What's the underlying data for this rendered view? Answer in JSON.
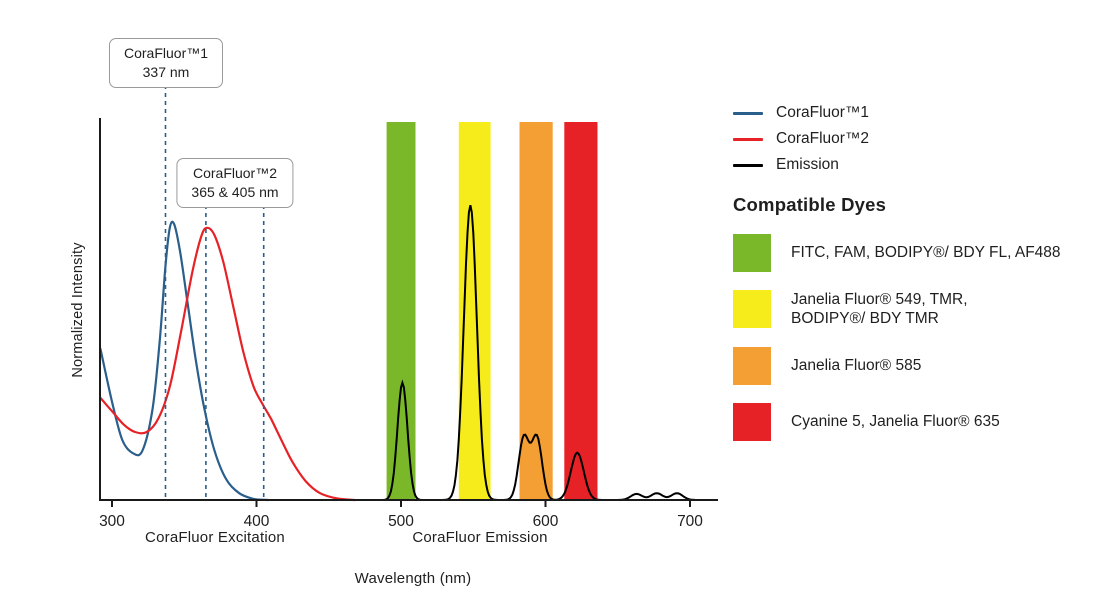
{
  "chart_data": {
    "type": "line",
    "title": "",
    "xlabel": "Wavelength (nm)",
    "ylabel": "Normalized Intensity",
    "x_ticks": [
      300,
      400,
      500,
      600,
      700
    ],
    "xlim": [
      292,
      720
    ],
    "ylim": [
      0,
      1
    ],
    "grid": false,
    "marker_color": "#2a5f8c",
    "axis_color": "#1a1a1a",
    "section_labels": [
      {
        "text": "CoraFluor Excitation"
      },
      {
        "text": "CoraFluor Emission"
      }
    ],
    "annotations": [
      {
        "title": "CoraFluor™1",
        "subtitle": "337 nm",
        "lines_nm": [
          337
        ]
      },
      {
        "title": "CoraFluor™2",
        "subtitle": "365 & 405 nm",
        "lines_nm": [
          365,
          405
        ]
      }
    ],
    "emission_bands": [
      {
        "name": "green",
        "from_nm": 490,
        "to_nm": 510,
        "color": "#7ab829"
      },
      {
        "name": "yellow",
        "from_nm": 540,
        "to_nm": 562,
        "color": "#f7ec1b"
      },
      {
        "name": "orange",
        "from_nm": 582,
        "to_nm": 605,
        "color": "#f49f33"
      },
      {
        "name": "red",
        "from_nm": 613,
        "to_nm": 636,
        "color": "#e62227"
      }
    ],
    "series": [
      {
        "name": "CoraFluor™1",
        "role": "excitation",
        "color": "#2a5f8c",
        "points": [
          [
            292,
            0.4
          ],
          [
            300,
            0.26
          ],
          [
            307,
            0.16
          ],
          [
            314,
            0.125
          ],
          [
            321,
            0.13
          ],
          [
            328,
            0.24
          ],
          [
            333,
            0.42
          ],
          [
            337,
            0.62
          ],
          [
            340,
            0.72
          ],
          [
            343,
            0.73
          ],
          [
            347,
            0.66
          ],
          [
            352,
            0.53
          ],
          [
            358,
            0.37
          ],
          [
            364,
            0.24
          ],
          [
            371,
            0.13
          ],
          [
            379,
            0.055
          ],
          [
            388,
            0.018
          ],
          [
            398,
            0.003
          ],
          [
            408,
            0
          ]
        ]
      },
      {
        "name": "CoraFluor™2",
        "role": "excitation",
        "color": "#e62227",
        "points": [
          [
            292,
            0.27
          ],
          [
            300,
            0.235
          ],
          [
            308,
            0.2
          ],
          [
            316,
            0.18
          ],
          [
            324,
            0.18
          ],
          [
            332,
            0.215
          ],
          [
            340,
            0.3
          ],
          [
            348,
            0.45
          ],
          [
            356,
            0.61
          ],
          [
            362,
            0.7
          ],
          [
            366,
            0.72
          ],
          [
            371,
            0.7
          ],
          [
            377,
            0.63
          ],
          [
            384,
            0.51
          ],
          [
            391,
            0.39
          ],
          [
            398,
            0.3
          ],
          [
            404,
            0.255
          ],
          [
            410,
            0.215
          ],
          [
            417,
            0.16
          ],
          [
            425,
            0.1
          ],
          [
            434,
            0.05
          ],
          [
            444,
            0.018
          ],
          [
            456,
            0.004
          ],
          [
            468,
            0
          ]
        ]
      }
    ],
    "emission": {
      "name": "Emission",
      "color": "#000000",
      "range_nm": [
        435,
        716
      ],
      "peaks": [
        {
          "nm": 501,
          "height": 0.31,
          "sigma": 3.5
        },
        {
          "nm": 548,
          "height": 0.78,
          "sigma": 4.5
        },
        {
          "nm": 585,
          "height": 0.165,
          "sigma": 3.6
        },
        {
          "nm": 594,
          "height": 0.165,
          "sigma": 3.6
        },
        {
          "nm": 622,
          "height": 0.125,
          "sigma": 4.5
        },
        {
          "nm": 663,
          "height": 0.016,
          "sigma": 4
        },
        {
          "nm": 677,
          "height": 0.018,
          "sigma": 4
        },
        {
          "nm": 691,
          "height": 0.018,
          "sigma": 4
        }
      ]
    },
    "legend": {
      "items": [
        {
          "label": "CoraFluor™1",
          "color": "#2a5f8c"
        },
        {
          "label": "CoraFluor™2",
          "color": "#e62227"
        },
        {
          "label": "Emission",
          "color": "#000000"
        }
      ]
    }
  },
  "dye_panel": {
    "title": "Compatible Dyes",
    "items": [
      {
        "color": "#7ab829",
        "label": "FITC, FAM, BODIPY®/ BDY FL, AF488"
      },
      {
        "color": "#f7ec1b",
        "label": "Janelia Fluor® 549, TMR,\nBODIPY®/ BDY TMR"
      },
      {
        "color": "#f49f33",
        "label": "Janelia Fluor® 585"
      },
      {
        "color": "#e62227",
        "label": "Cyanine 5, Janelia Fluor® 635"
      }
    ]
  }
}
